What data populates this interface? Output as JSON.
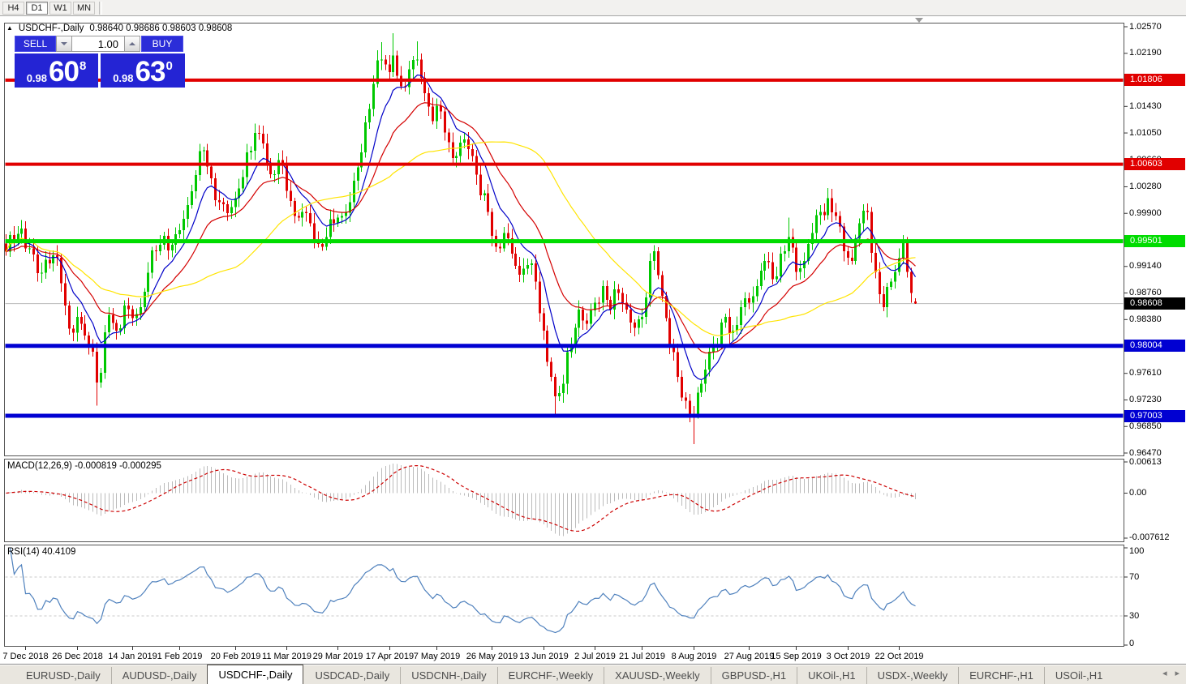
{
  "toolbar": {
    "timeframes": [
      {
        "label": "H4",
        "active": false
      },
      {
        "label": "D1",
        "active": true
      },
      {
        "label": "W1",
        "active": false
      },
      {
        "label": "MN",
        "active": false
      }
    ]
  },
  "chart": {
    "symbol_label": "USDCHF-,Daily",
    "ohlc_text": "0.98640 0.98686 0.98603 0.98608"
  },
  "one_click": {
    "sell_label": "SELL",
    "buy_label": "BUY",
    "volume": "1.00",
    "sell_price": {
      "prefix": "0.98",
      "big": "60",
      "sup": "8"
    },
    "buy_price": {
      "prefix": "0.98",
      "big": "63",
      "sup": "0"
    }
  },
  "price_axis": {
    "ticks": [
      "1.02570",
      "1.02190",
      "1.01430",
      "1.01050",
      "1.00660",
      "1.00280",
      "0.99900",
      "0.99140",
      "0.98760",
      "0.98380",
      "0.97610",
      "0.97230",
      "0.96850",
      "0.96470"
    ],
    "levels": [
      {
        "value": "1.01806",
        "price": 1.01806,
        "color": "#e10000",
        "thickness": 4
      },
      {
        "value": "1.00603",
        "price": 1.00603,
        "color": "#e10000",
        "thickness": 4
      },
      {
        "value": "0.99501",
        "price": 0.99501,
        "color": "#00dc00",
        "thickness": 5
      },
      {
        "value": "0.98004",
        "price": 0.98004,
        "color": "#0000d2",
        "thickness": 5
      },
      {
        "value": "0.97003",
        "price": 0.97003,
        "color": "#0000d2",
        "thickness": 5
      }
    ],
    "current": {
      "value": "0.98608",
      "price": 0.98608,
      "color": "#000000",
      "line_color": "#bcbcbc"
    }
  },
  "macd": {
    "name": "MACD(12,26,9)",
    "values": "-0.000819 -0.000295",
    "axis_top": "0.00613",
    "axis_zero": "0.00",
    "axis_bottom": "-0.007612",
    "histogram_color": "#bbbbbb",
    "signal_color": "#cc0000"
  },
  "rsi": {
    "name": "RSI(14)",
    "value": "40.4109",
    "axis": [
      "100",
      "70",
      "30",
      "0"
    ],
    "levels": [
      70,
      30
    ],
    "line_color": "#4f81bd"
  },
  "time_axis": {
    "labels": [
      "7 Dec 2018",
      "26 Dec 2018",
      "14 Jan 2019",
      "1 Feb 2019",
      "20 Feb 2019",
      "11 Mar 2019",
      "29 Mar 2019",
      "17 Apr 2019",
      "7 May 2019",
      "26 May 2019",
      "13 Jun 2019",
      "2 Jul 2019",
      "21 Jul 2019",
      "8 Aug 2019",
      "27 Aug 2019",
      "15 Sep 2019",
      "3 Oct 2019",
      "22 Oct 2019"
    ],
    "indices": [
      5,
      18,
      32,
      44,
      58,
      71,
      84,
      97,
      109,
      123,
      136,
      149,
      161,
      174,
      188,
      200,
      213,
      226
    ]
  },
  "tabs": {
    "items": [
      {
        "label": "EURUSD-,Daily",
        "active": false
      },
      {
        "label": "AUDUSD-,Daily",
        "active": false
      },
      {
        "label": "USDCHF-,Daily",
        "active": true
      },
      {
        "label": "USDCAD-,Daily",
        "active": false
      },
      {
        "label": "USDCNH-,Daily",
        "active": false
      },
      {
        "label": "EURCHF-,Weekly",
        "active": false
      },
      {
        "label": "XAUUSD-,Weekly",
        "active": false
      },
      {
        "label": "GBPUSD-,H1",
        "active": false
      },
      {
        "label": "UKOil-,H1",
        "active": false
      },
      {
        "label": "USDX-,Weekly",
        "active": false
      },
      {
        "label": "EURCHF-,H1",
        "active": false
      },
      {
        "label": "USOil-,H1",
        "active": false
      }
    ],
    "prev_icon": "◂",
    "next_icon": "▸"
  },
  "chart_data": {
    "type": "candlestick",
    "symbol": "USDCHF",
    "period": "Daily",
    "bars": 231,
    "price_range": {
      "top": 1.0257,
      "bottom": 0.9647
    },
    "current_ohlc": {
      "open": 0.9864,
      "high": 0.98686,
      "low": 0.98603,
      "close": 0.98608
    },
    "up_color": "#00c800",
    "down_color": "#e10000",
    "close_waypoints": [
      [
        0,
        0.9935
      ],
      [
        2,
        0.995
      ],
      [
        4,
        0.9968
      ],
      [
        6,
        0.994
      ],
      [
        9,
        0.9905
      ],
      [
        12,
        0.993
      ],
      [
        14,
        0.989
      ],
      [
        16,
        0.9825
      ],
      [
        18,
        0.9842
      ],
      [
        20,
        0.9815
      ],
      [
        22,
        0.9792
      ],
      [
        23,
        0.9748
      ],
      [
        24,
        0.9762
      ],
      [
        26,
        0.9845
      ],
      [
        28,
        0.9822
      ],
      [
        30,
        0.9858
      ],
      [
        32,
        0.984
      ],
      [
        34,
        0.9856
      ],
      [
        36,
        0.9905
      ],
      [
        38,
        0.9936
      ],
      [
        40,
        0.9958
      ],
      [
        42,
        0.9945
      ],
      [
        44,
        0.9966
      ],
      [
        46,
        1.0002
      ],
      [
        48,
        1.0045
      ],
      [
        50,
        1.008
      ],
      [
        52,
        1.004
      ],
      [
        54,
        1.0006
      ],
      [
        56,
        0.999
      ],
      [
        58,
        1.0012
      ],
      [
        60,
        1.0042
      ],
      [
        63,
        1.0105
      ],
      [
        65,
        1.009
      ],
      [
        67,
        1.0046
      ],
      [
        69,
        1.0066
      ],
      [
        71,
        1.0022
      ],
      [
        73,
        0.9986
      ],
      [
        75,
        0.9992
      ],
      [
        77,
        0.9976
      ],
      [
        79,
        0.9946
      ],
      [
        81,
        0.9956
      ],
      [
        83,
        0.9976
      ],
      [
        85,
        0.9986
      ],
      [
        87,
        1.0006
      ],
      [
        89,
        1.0056
      ],
      [
        91,
        1.012
      ],
      [
        93,
        1.0175
      ],
      [
        95,
        1.021
      ],
      [
        97,
        1.0192
      ],
      [
        98,
        1.0216
      ],
      [
        100,
        1.0172
      ],
      [
        102,
        1.0196
      ],
      [
        104,
        1.021
      ],
      [
        106,
        1.0162
      ],
      [
        108,
        1.0122
      ],
      [
        110,
        1.0136
      ],
      [
        112,
        1.0092
      ],
      [
        114,
        1.0072
      ],
      [
        116,
        1.0096
      ],
      [
        118,
        1.0072
      ],
      [
        120,
        1.0016
      ],
      [
        122,
        0.9992
      ],
      [
        124,
        0.9942
      ],
      [
        126,
        0.9962
      ],
      [
        128,
        0.9932
      ],
      [
        130,
        0.9902
      ],
      [
        132,
        0.9916
      ],
      [
        134,
        0.9892
      ],
      [
        136,
        0.9822
      ],
      [
        138,
        0.9756
      ],
      [
        139,
        0.9728
      ],
      [
        141,
        0.9746
      ],
      [
        143,
        0.9802
      ],
      [
        145,
        0.9852
      ],
      [
        147,
        0.9832
      ],
      [
        149,
        0.9862
      ],
      [
        151,
        0.9886
      ],
      [
        153,
        0.9852
      ],
      [
        155,
        0.9876
      ],
      [
        157,
        0.9852
      ],
      [
        159,
        0.9826
      ],
      [
        161,
        0.9842
      ],
      [
        163,
        0.9922
      ],
      [
        164,
        0.9936
      ],
      [
        166,
        0.9872
      ],
      [
        168,
        0.9802
      ],
      [
        170,
        0.9756
      ],
      [
        172,
        0.9722
      ],
      [
        174,
        0.9702
      ],
      [
        176,
        0.9746
      ],
      [
        178,
        0.9792
      ],
      [
        180,
        0.9802
      ],
      [
        182,
        0.9842
      ],
      [
        184,
        0.9822
      ],
      [
        186,
        0.9856
      ],
      [
        188,
        0.9862
      ],
      [
        190,
        0.9886
      ],
      [
        192,
        0.9922
      ],
      [
        194,
        0.9896
      ],
      [
        196,
        0.9932
      ],
      [
        198,
        0.9956
      ],
      [
        200,
        0.9906
      ],
      [
        202,
        0.9922
      ],
      [
        204,
        0.9962
      ],
      [
        206,
        0.9992
      ],
      [
        208,
        1.0012
      ],
      [
        210,
        0.9986
      ],
      [
        212,
        0.9936
      ],
      [
        214,
        0.9922
      ],
      [
        216,
        0.9976
      ],
      [
        218,
        0.9992
      ],
      [
        220,
        0.9906
      ],
      [
        222,
        0.9856
      ],
      [
        224,
        0.9892
      ],
      [
        226,
        0.9926
      ],
      [
        227,
        0.995
      ],
      [
        228,
        0.9906
      ],
      [
        229,
        0.9876
      ],
      [
        230,
        0.98608
      ]
    ],
    "overrides": [
      {
        "i": 23,
        "low": 0.9715
      },
      {
        "i": 95,
        "high": 1.0235
      },
      {
        "i": 98,
        "high": 1.0248
      },
      {
        "i": 104,
        "high": 1.0236
      },
      {
        "i": 139,
        "low": 0.9698
      },
      {
        "i": 174,
        "low": 0.966
      },
      {
        "i": 198,
        "high": 0.9984
      },
      {
        "i": 230,
        "open": 0.9864,
        "high": 0.98686,
        "low": 0.98603,
        "close": 0.98608
      }
    ],
    "moving_averages": [
      {
        "name": "fast",
        "method": "ema",
        "period": 9,
        "color": "#0000c8"
      },
      {
        "name": "medium",
        "method": "ema",
        "period": 21,
        "color": "#d40000"
      },
      {
        "name": "slow",
        "method": "sma",
        "period": 45,
        "color": "#ffe400"
      }
    ]
  }
}
